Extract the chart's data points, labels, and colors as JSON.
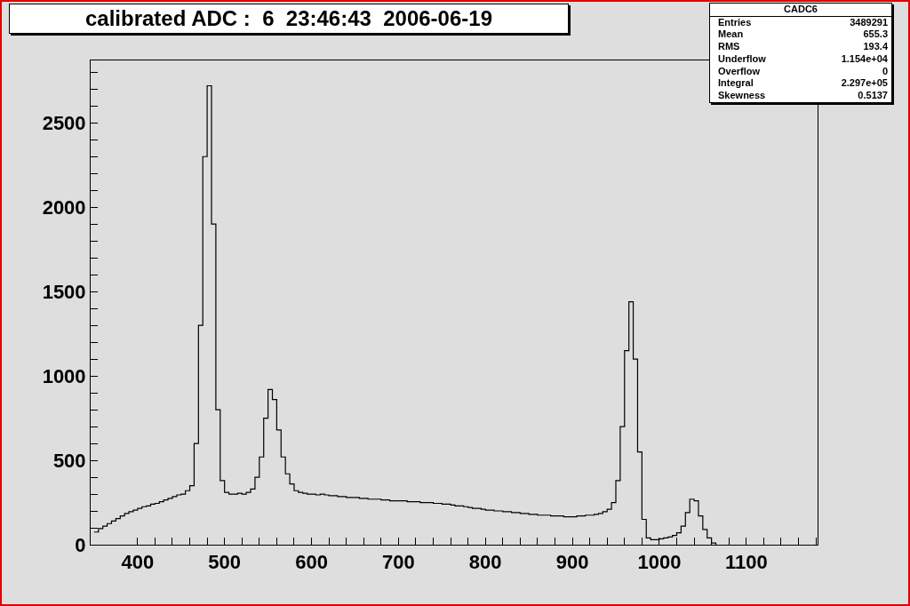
{
  "chart_data": {
    "type": "histogram",
    "title": "calibrated ADC :  6  23:46:43  2006-06-19",
    "annotations": [
      "CADC6",
      "Entries",
      "3489291",
      "Mean",
      "655.3",
      "RMS",
      "193.4",
      "Underflow",
      "1.154e+04",
      "Overflow",
      "0",
      "Integral",
      "2.297e+05",
      "Skewness",
      "0.5137"
    ],
    "color": "#000000",
    "bins": [
      350,
      355,
      360,
      365,
      370,
      375,
      380,
      385,
      390,
      395,
      400,
      405,
      410,
      415,
      420,
      425,
      430,
      435,
      440,
      445,
      450,
      455,
      460,
      465,
      470,
      475,
      480,
      485,
      490,
      495,
      500,
      505,
      510,
      515,
      520,
      525,
      530,
      535,
      540,
      545,
      550,
      555,
      560,
      565,
      570,
      575,
      580,
      585,
      590,
      595,
      600,
      605,
      610,
      615,
      620,
      625,
      630,
      635,
      640,
      645,
      650,
      655,
      660,
      665,
      670,
      675,
      680,
      685,
      690,
      695,
      700,
      705,
      710,
      715,
      720,
      725,
      730,
      735,
      740,
      745,
      750,
      755,
      760,
      765,
      770,
      775,
      780,
      785,
      790,
      795,
      800,
      805,
      810,
      815,
      820,
      825,
      830,
      835,
      840,
      845,
      850,
      855,
      860,
      865,
      870,
      875,
      880,
      885,
      890,
      895,
      900,
      905,
      910,
      915,
      920,
      925,
      930,
      935,
      940,
      945,
      950,
      955,
      960,
      965,
      970,
      975,
      980,
      985,
      990,
      995,
      1000,
      1005,
      1010,
      1015,
      1020,
      1025,
      1030,
      1035,
      1040,
      1045,
      1050,
      1055,
      1060,
      1065
    ],
    "values": [
      75,
      95,
      110,
      125,
      140,
      155,
      170,
      185,
      195,
      205,
      215,
      225,
      230,
      240,
      245,
      255,
      265,
      275,
      285,
      295,
      300,
      320,
      350,
      600,
      1300,
      2300,
      2720,
      1900,
      800,
      380,
      310,
      300,
      300,
      305,
      300,
      310,
      330,
      400,
      520,
      750,
      920,
      860,
      680,
      520,
      420,
      360,
      320,
      310,
      305,
      300,
      300,
      295,
      300,
      295,
      290,
      290,
      285,
      285,
      280,
      280,
      280,
      275,
      275,
      270,
      270,
      270,
      265,
      265,
      260,
      260,
      260,
      260,
      255,
      255,
      255,
      250,
      250,
      250,
      245,
      245,
      240,
      240,
      235,
      230,
      230,
      225,
      220,
      215,
      215,
      210,
      205,
      205,
      200,
      200,
      195,
      195,
      190,
      190,
      185,
      185,
      180,
      180,
      175,
      175,
      175,
      170,
      170,
      170,
      165,
      165,
      165,
      170,
      170,
      175,
      175,
      180,
      185,
      195,
      210,
      250,
      380,
      700,
      1150,
      1440,
      1100,
      550,
      150,
      40,
      30,
      30,
      35,
      40,
      45,
      55,
      70,
      110,
      190,
      270,
      260,
      170,
      90,
      40,
      10
    ],
    "xlim": [
      346,
      1182
    ],
    "xticks": [
      400,
      {
        "value": 420,
        "label": null
      },
      {
        "value": 440,
        "label": null
      },
      {
        "value": 460,
        "label": null
      },
      {
        "value": 480,
        "label": null
      },
      500,
      {
        "value": 520,
        "label": null
      },
      {
        "value": 540,
        "label": null
      },
      {
        "value": 560,
        "label": null
      },
      {
        "value": 580,
        "label": null
      },
      600,
      {
        "value": 620,
        "label": null
      },
      {
        "value": 640,
        "label": null
      },
      {
        "value": 660,
        "label": null
      },
      {
        "value": 680,
        "label": null
      },
      700,
      {
        "value": 720,
        "label": null
      },
      {
        "value": 740,
        "label": null
      },
      {
        "value": 760,
        "label": null
      },
      {
        "value": 780,
        "label": null
      },
      800,
      {
        "value": 820,
        "label": null
      },
      {
        "value": 840,
        "label": null
      },
      {
        "value": 860,
        "label": null
      },
      {
        "value": 880,
        "label": null
      },
      900,
      {
        "value": 920,
        "label": null
      },
      {
        "value": 940,
        "label": null
      },
      {
        "value": 960,
        "label": null
      },
      {
        "value": 980,
        "label": null
      },
      1000,
      {
        "value": 1020,
        "label": null
      },
      {
        "value": 1040,
        "label": null
      },
      {
        "value": 1060,
        "label": null
      },
      {
        "value": 1080,
        "label": null
      },
      1100,
      {
        "value": 1120,
        "label": null
      },
      {
        "value": 1140,
        "label": null
      },
      {
        "value": 1160,
        "label": null
      },
      {
        "value": 1180,
        "label": null
      }
    ],
    "ylim": [
      0,
      2870
    ],
    "yticks": [
      0,
      {
        "value": 100,
        "label": null
      },
      {
        "value": 200,
        "label": null
      },
      {
        "value": 300,
        "label": null
      },
      {
        "value": 400,
        "label": null
      },
      500,
      {
        "value": 600,
        "label": null
      },
      {
        "value": 700,
        "label": null
      },
      {
        "value": 800,
        "label": null
      },
      {
        "value": 900,
        "label": null
      },
      1000,
      {
        "value": 1100,
        "label": null
      },
      {
        "value": 1200,
        "label": null
      },
      {
        "value": 1300,
        "label": null
      },
      {
        "value": 1400,
        "label": null
      },
      1500,
      {
        "value": 1600,
        "label": null
      },
      {
        "value": 1700,
        "label": null
      },
      {
        "value": 1800,
        "label": null
      },
      {
        "value": 1900,
        "label": null
      },
      2000,
      {
        "value": 2100,
        "label": null
      },
      {
        "value": 2200,
        "label": null
      },
      {
        "value": 2300,
        "label": null
      },
      {
        "value": 2400,
        "label": null
      },
      2500,
      {
        "value": 2600,
        "label": null
      },
      {
        "value": 2700,
        "label": null
      },
      {
        "value": 2800,
        "label": null
      }
    ]
  }
}
